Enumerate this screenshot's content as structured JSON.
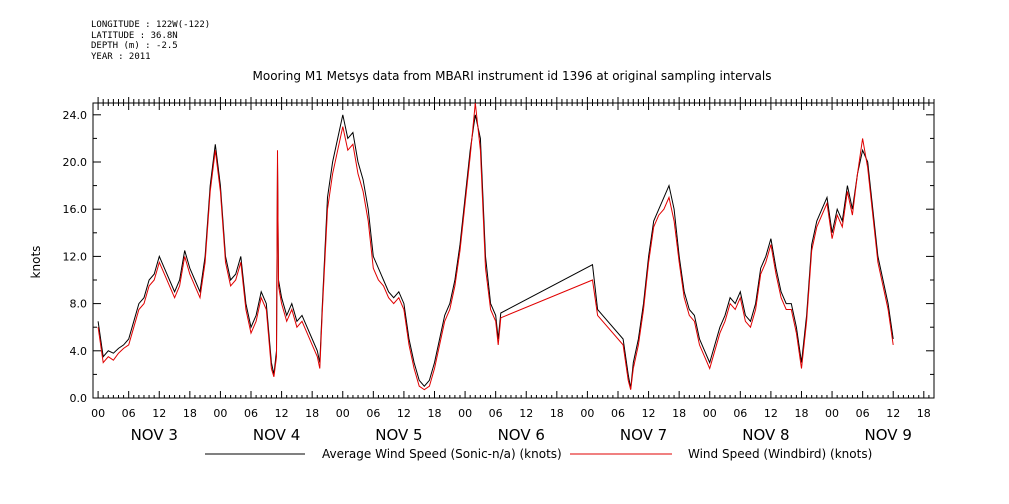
{
  "header": {
    "longitude": "LONGITUDE : 122W(-122)",
    "latitude": "LATITUDE : 36.8N",
    "depth": "DEPTH (m) : -2.5",
    "year": "YEAR : 2011"
  },
  "chart_data": {
    "type": "line",
    "title": "Mooring M1 Metsys data from MBARI instrument id 1396 at original sampling intervals",
    "ylabel": "knots",
    "xlabel": "",
    "ylim": [
      0,
      25
    ],
    "xlim_hours": [
      -1,
      164
    ],
    "y_ticks": [
      "0.0",
      "4.0",
      "8.0",
      "12.0",
      "16.0",
      "20.0",
      "24.0"
    ],
    "x_hour_tick_labels": [
      "00",
      "06",
      "12",
      "18",
      "00",
      "06",
      "12",
      "18",
      "00",
      "06",
      "12",
      "18",
      "00",
      "06",
      "12",
      "18",
      "00",
      "06",
      "12",
      "18",
      "00",
      "06",
      "12",
      "18",
      "00",
      "06",
      "12",
      "18"
    ],
    "x_day_labels": [
      "NOV 3",
      "NOV 4",
      "NOV 5",
      "NOV 6",
      "NOV 7",
      "NOV 8",
      "NOV 9"
    ],
    "grid": false,
    "legend_placement": "bottom",
    "series": [
      {
        "name": "Average Wind Speed (Sonic-n/a) (knots)",
        "color": "#000000",
        "points": [
          [
            0,
            6.5
          ],
          [
            1,
            3.5
          ],
          [
            2,
            4
          ],
          [
            3,
            3.8
          ],
          [
            4,
            4.2
          ],
          [
            5,
            4.5
          ],
          [
            6,
            5
          ],
          [
            7,
            6.5
          ],
          [
            8,
            8
          ],
          [
            9,
            8.5
          ],
          [
            10,
            10
          ],
          [
            11,
            10.5
          ],
          [
            12,
            12
          ],
          [
            13,
            11
          ],
          [
            14,
            10
          ],
          [
            15,
            9
          ],
          [
            16,
            10
          ],
          [
            17,
            12.5
          ],
          [
            18,
            11
          ],
          [
            19,
            10
          ],
          [
            20,
            9
          ],
          [
            21,
            12
          ],
          [
            22,
            18
          ],
          [
            23,
            21.5
          ],
          [
            24,
            18
          ],
          [
            25,
            12
          ],
          [
            26,
            10
          ],
          [
            27,
            10.5
          ],
          [
            28,
            12
          ],
          [
            29,
            8
          ],
          [
            30,
            6
          ],
          [
            31,
            7
          ],
          [
            32,
            9
          ],
          [
            33,
            8
          ],
          [
            34,
            3
          ],
          [
            34.5,
            2
          ],
          [
            35,
            4
          ],
          [
            35.2,
            20
          ],
          [
            35.4,
            10
          ],
          [
            36,
            8.5
          ],
          [
            37,
            7
          ],
          [
            38,
            8
          ],
          [
            39,
            6.5
          ],
          [
            40,
            7
          ],
          [
            41,
            6
          ],
          [
            42,
            5
          ],
          [
            43,
            4
          ],
          [
            43.5,
            3
          ],
          [
            44,
            8
          ],
          [
            45,
            17
          ],
          [
            46,
            20
          ],
          [
            47,
            22
          ],
          [
            48,
            24
          ],
          [
            49,
            22
          ],
          [
            50,
            22.5
          ],
          [
            51,
            20
          ],
          [
            52,
            18.5
          ],
          [
            53,
            16
          ],
          [
            54,
            12
          ],
          [
            55,
            11
          ],
          [
            56,
            10
          ],
          [
            57,
            9
          ],
          [
            58,
            8.5
          ],
          [
            59,
            9
          ],
          [
            60,
            8
          ],
          [
            61,
            5
          ],
          [
            62,
            3
          ],
          [
            63,
            1.5
          ],
          [
            64,
            1
          ],
          [
            65,
            1.5
          ],
          [
            66,
            3
          ],
          [
            67,
            5
          ],
          [
            68,
            7
          ],
          [
            69,
            8
          ],
          [
            70,
            10
          ],
          [
            71,
            13
          ],
          [
            72,
            17
          ],
          [
            73,
            21
          ],
          [
            74,
            24
          ],
          [
            75,
            22
          ],
          [
            76,
            12
          ],
          [
            77,
            8
          ],
          [
            78,
            7
          ],
          [
            78.5,
            5
          ],
          [
            79,
            7.2
          ],
          [
            97,
            11.3
          ],
          [
            98,
            7.5
          ],
          [
            99,
            7
          ],
          [
            103,
            5
          ],
          [
            104,
            2
          ],
          [
            104.5,
            0.8
          ],
          [
            105,
            3
          ],
          [
            106,
            5
          ],
          [
            107,
            8
          ],
          [
            108,
            12
          ],
          [
            109,
            15
          ],
          [
            110,
            16
          ],
          [
            111,
            17
          ],
          [
            112,
            18
          ],
          [
            113,
            16
          ],
          [
            114,
            12
          ],
          [
            115,
            9
          ],
          [
            116,
            7.5
          ],
          [
            117,
            7
          ],
          [
            118,
            5
          ],
          [
            119,
            4
          ],
          [
            120,
            3
          ],
          [
            121,
            4.5
          ],
          [
            122,
            6
          ],
          [
            123,
            7
          ],
          [
            124,
            8.5
          ],
          [
            125,
            8
          ],
          [
            126,
            9
          ],
          [
            127,
            7
          ],
          [
            128,
            6.5
          ],
          [
            129,
            8
          ],
          [
            130,
            11
          ],
          [
            131,
            12
          ],
          [
            132,
            13.5
          ],
          [
            133,
            11
          ],
          [
            134,
            9
          ],
          [
            135,
            8
          ],
          [
            136,
            8
          ],
          [
            137,
            6
          ],
          [
            138,
            3
          ],
          [
            139,
            7
          ],
          [
            140,
            13
          ],
          [
            141,
            15
          ],
          [
            142,
            16
          ],
          [
            143,
            17
          ],
          [
            144,
            14
          ],
          [
            145,
            16
          ],
          [
            146,
            15
          ],
          [
            147,
            18
          ],
          [
            148,
            16
          ],
          [
            149,
            19
          ],
          [
            150,
            21
          ],
          [
            151,
            20
          ],
          [
            152,
            16
          ],
          [
            153,
            12
          ],
          [
            154,
            10
          ],
          [
            155,
            8
          ],
          [
            156,
            5
          ]
        ]
      },
      {
        "name": "Wind Speed (Windbird) (knots)",
        "color": "#e00000",
        "points": [
          [
            0,
            6
          ],
          [
            1,
            3
          ],
          [
            2,
            3.5
          ],
          [
            3,
            3.2
          ],
          [
            4,
            3.8
          ],
          [
            5,
            4.2
          ],
          [
            6,
            4.5
          ],
          [
            7,
            6
          ],
          [
            8,
            7.5
          ],
          [
            9,
            8
          ],
          [
            10,
            9.5
          ],
          [
            11,
            10
          ],
          [
            12,
            11.5
          ],
          [
            13,
            10.5
          ],
          [
            14,
            9.5
          ],
          [
            15,
            8.5
          ],
          [
            16,
            9.5
          ],
          [
            17,
            12
          ],
          [
            18,
            10.5
          ],
          [
            19,
            9.5
          ],
          [
            20,
            8.5
          ],
          [
            21,
            11.5
          ],
          [
            22,
            17.5
          ],
          [
            23,
            21
          ],
          [
            24,
            17.5
          ],
          [
            25,
            11.5
          ],
          [
            26,
            9.5
          ],
          [
            27,
            10
          ],
          [
            28,
            11.5
          ],
          [
            29,
            7.5
          ],
          [
            30,
            5.5
          ],
          [
            31,
            6.5
          ],
          [
            32,
            8.5
          ],
          [
            33,
            7.5
          ],
          [
            34,
            2.5
          ],
          [
            34.5,
            1.8
          ],
          [
            35,
            3.5
          ],
          [
            35.2,
            21
          ],
          [
            35.4,
            9.5
          ],
          [
            36,
            8
          ],
          [
            37,
            6.5
          ],
          [
            38,
            7.5
          ],
          [
            39,
            6
          ],
          [
            40,
            6.5
          ],
          [
            41,
            5.5
          ],
          [
            42,
            4.5
          ],
          [
            43,
            3.5
          ],
          [
            43.5,
            2.5
          ],
          [
            44,
            7.5
          ],
          [
            45,
            16
          ],
          [
            46,
            19
          ],
          [
            47,
            21
          ],
          [
            48,
            23
          ],
          [
            49,
            21
          ],
          [
            50,
            21.5
          ],
          [
            51,
            19
          ],
          [
            52,
            17.5
          ],
          [
            53,
            15
          ],
          [
            54,
            11
          ],
          [
            55,
            10
          ],
          [
            56,
            9.5
          ],
          [
            57,
            8.5
          ],
          [
            58,
            8
          ],
          [
            59,
            8.5
          ],
          [
            60,
            7.5
          ],
          [
            61,
            4.5
          ],
          [
            62,
            2.5
          ],
          [
            63,
            1
          ],
          [
            64,
            0.7
          ],
          [
            65,
            1
          ],
          [
            66,
            2.5
          ],
          [
            67,
            4.5
          ],
          [
            68,
            6.5
          ],
          [
            69,
            7.5
          ],
          [
            70,
            9.5
          ],
          [
            71,
            12.5
          ],
          [
            72,
            16.5
          ],
          [
            73,
            20.5
          ],
          [
            74,
            25
          ],
          [
            75,
            21
          ],
          [
            76,
            11
          ],
          [
            77,
            7.5
          ],
          [
            78,
            6.5
          ],
          [
            78.5,
            4.5
          ],
          [
            79,
            6.8
          ],
          [
            97,
            10
          ],
          [
            98,
            7
          ],
          [
            99,
            6.5
          ],
          [
            103,
            4.5
          ],
          [
            104,
            1.5
          ],
          [
            104.5,
            0.7
          ],
          [
            105,
            2.5
          ],
          [
            106,
            4.5
          ],
          [
            107,
            7.5
          ],
          [
            108,
            11.5
          ],
          [
            109,
            14.5
          ],
          [
            110,
            15.5
          ],
          [
            111,
            16
          ],
          [
            112,
            17
          ],
          [
            113,
            15
          ],
          [
            114,
            11.5
          ],
          [
            115,
            8.5
          ],
          [
            116,
            7
          ],
          [
            117,
            6.5
          ],
          [
            118,
            4.5
          ],
          [
            119,
            3.5
          ],
          [
            120,
            2.5
          ],
          [
            121,
            4
          ],
          [
            122,
            5.5
          ],
          [
            123,
            6.5
          ],
          [
            124,
            8
          ],
          [
            125,
            7.5
          ],
          [
            126,
            8.5
          ],
          [
            127,
            6.5
          ],
          [
            128,
            6
          ],
          [
            129,
            7.5
          ],
          [
            130,
            10.5
          ],
          [
            131,
            11.5
          ],
          [
            132,
            13
          ],
          [
            133,
            10.5
          ],
          [
            134,
            8.5
          ],
          [
            135,
            7.5
          ],
          [
            136,
            7.5
          ],
          [
            137,
            5.5
          ],
          [
            138,
            2.5
          ],
          [
            139,
            6.5
          ],
          [
            140,
            12.5
          ],
          [
            141,
            14.5
          ],
          [
            142,
            15.5
          ],
          [
            143,
            16.5
          ],
          [
            144,
            13.5
          ],
          [
            145,
            15.5
          ],
          [
            146,
            14.5
          ],
          [
            147,
            17.5
          ],
          [
            148,
            15.5
          ],
          [
            149,
            19
          ],
          [
            150,
            22
          ],
          [
            151,
            19.5
          ],
          [
            152,
            15.5
          ],
          [
            153,
            11.5
          ],
          [
            154,
            9.5
          ],
          [
            155,
            7.5
          ],
          [
            156,
            4.5
          ]
        ]
      }
    ]
  }
}
